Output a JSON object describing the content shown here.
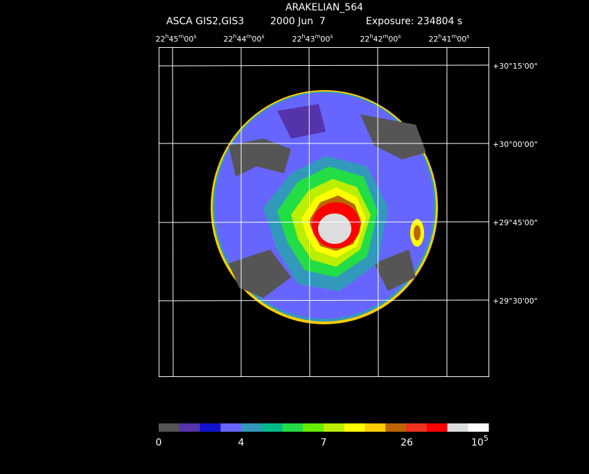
{
  "header": {
    "title": "ARAKELIAN_564",
    "instrument": "ASCA GIS2,GIS3",
    "date": "2000 Jun  7",
    "exposure": "Exposure: 234804 s"
  },
  "ra_labels": [
    [
      "22",
      "h",
      "45",
      "m",
      "00",
      "s"
    ],
    [
      "22",
      "h",
      "44",
      "m",
      "00",
      "s"
    ],
    [
      "22",
      "h",
      "43",
      "m",
      "00",
      "s"
    ],
    [
      "22",
      "h",
      "42",
      "m",
      "00",
      "s"
    ],
    [
      "22",
      "h",
      "41",
      "m",
      "00",
      "s"
    ]
  ],
  "dec_labels": [
    "+30°15'00\"",
    "+30°00'00\"",
    "+29°45'00\"",
    "+29°30'00\""
  ],
  "colorbar": {
    "colors": [
      "#555555",
      "#5533aa",
      "#1111cc",
      "#6666ff",
      "#3399bb",
      "#00bb88",
      "#22dd44",
      "#66ee00",
      "#bbee00",
      "#ffff00",
      "#ffcc00",
      "#bb6600",
      "#ee3322",
      "#ff0000",
      "#dddddd",
      "#ffffff"
    ],
    "labels": [
      "0",
      "4",
      "7",
      "26"
    ],
    "top_label": {
      "base": "10",
      "exp": "5"
    }
  }
}
